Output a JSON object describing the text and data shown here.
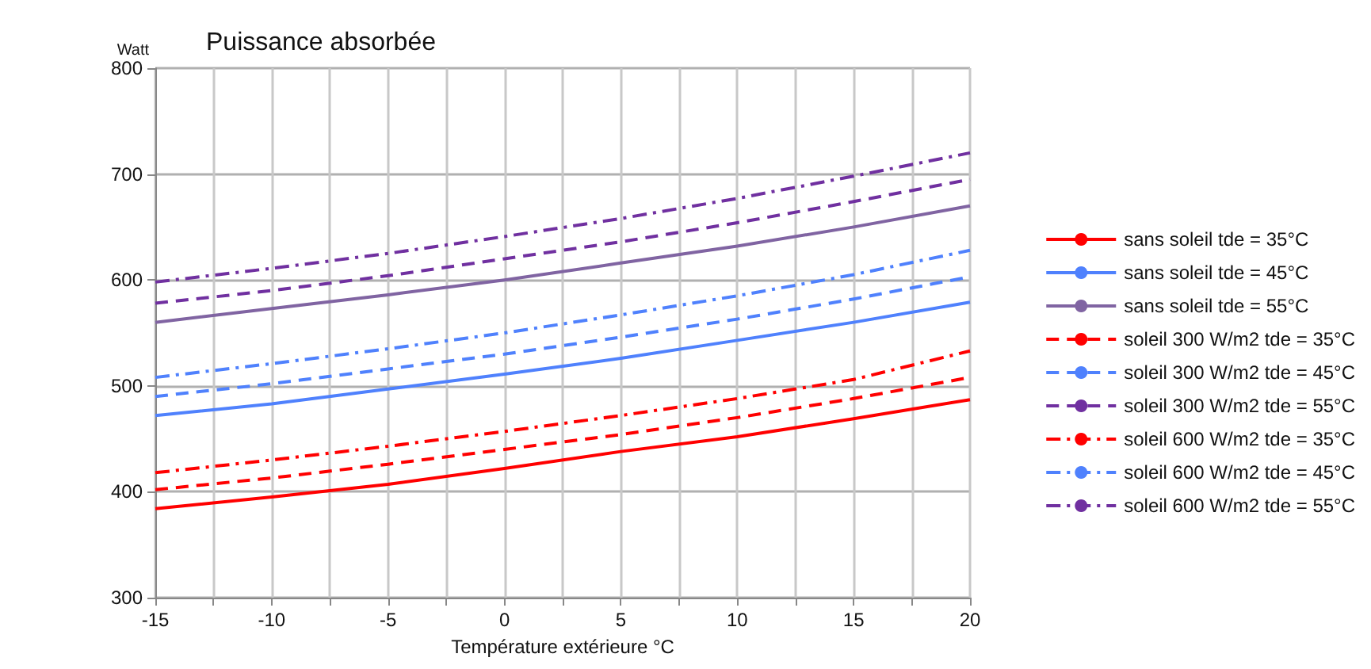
{
  "chart_data": {
    "type": "line",
    "title": "Puissance absorbée",
    "xlabel": "Température extérieure °C",
    "ylabel": "Watt",
    "x": [
      -15,
      -10,
      -5,
      0,
      5,
      10,
      15,
      20
    ],
    "xlim": [
      -15,
      20
    ],
    "xticks": [
      -15,
      {
        "value": -12.5,
        "label": null
      },
      -10,
      {
        "value": -7.5,
        "label": null
      },
      -5,
      {
        "value": -2.5,
        "label": null
      },
      0,
      {
        "value": 2.5,
        "label": null
      },
      5,
      {
        "value": 7.5,
        "label": null
      },
      10,
      {
        "value": 12.5,
        "label": null
      },
      15,
      {
        "value": 17.5,
        "label": null
      },
      20
    ],
    "ylim": [
      300,
      800
    ],
    "yticks": [
      300,
      400,
      500,
      600,
      700,
      800
    ],
    "grid": true,
    "legend": "right",
    "marker": "none",
    "series": [
      {
        "name": "sans soleil tde = 35°C",
        "color": "#ff0000",
        "line_style": "solid",
        "values": [
          384,
          395,
          407,
          422,
          438,
          452,
          469,
          487
        ]
      },
      {
        "name": "sans soleil tde = 45°C",
        "color": "#4f81fd",
        "line_style": "solid",
        "values": [
          472,
          483,
          497,
          511,
          526,
          543,
          560,
          579
        ]
      },
      {
        "name": "sans soleil tde = 55°C",
        "color": "#8064a2",
        "line_style": "solid",
        "values": [
          560,
          573,
          586,
          600,
          616,
          632,
          650,
          670
        ]
      },
      {
        "name": "soleil 300 W/m2 tde = 35°C",
        "color": "#ff0000",
        "line_style": "dashed",
        "values": [
          402,
          413,
          426,
          440,
          454,
          470,
          488,
          508
        ]
      },
      {
        "name": "soleil 300 W/m2 tde = 45°C",
        "color": "#4f81fd",
        "line_style": "dashed",
        "values": [
          490,
          502,
          516,
          530,
          546,
          563,
          582,
          603
        ]
      },
      {
        "name": "soleil 300 W/m2 tde = 55°C",
        "color": "#7030a0",
        "line_style": "dashed",
        "values": [
          578,
          590,
          604,
          620,
          636,
          654,
          674,
          695
        ]
      },
      {
        "name": "soleil 600 W/m2 tde = 35°C",
        "color": "#ff0000",
        "line_style": "dashdot",
        "values": [
          418,
          430,
          443,
          457,
          472,
          488,
          506,
          533
        ]
      },
      {
        "name": "soleil 600 W/m2 tde = 45°C",
        "color": "#4f81fd",
        "line_style": "dashdot",
        "values": [
          508,
          521,
          535,
          550,
          567,
          585,
          605,
          628
        ]
      },
      {
        "name": "soleil 600 W/m2 tde = 55°C",
        "color": "#7030a0",
        "line_style": "dashdot",
        "values": [
          598,
          611,
          625,
          641,
          658,
          677,
          698,
          720
        ]
      }
    ]
  }
}
